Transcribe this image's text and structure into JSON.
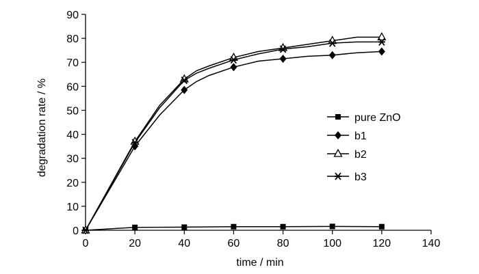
{
  "chart_data": {
    "type": "line",
    "xlabel": "time / min",
    "ylabel": "degradation rate / %",
    "xlim": [
      0,
      140
    ],
    "ylim": [
      0,
      90
    ],
    "xticks": [
      0,
      20,
      40,
      60,
      80,
      100,
      120,
      140
    ],
    "yticks": [
      0,
      10,
      20,
      30,
      40,
      50,
      60,
      70,
      80,
      90
    ],
    "grid": false,
    "legend_position": "right",
    "series": [
      {
        "name": "pure ZnO",
        "marker": "square",
        "x": [
          0,
          20,
          40,
          60,
          80,
          100,
          120
        ],
        "values": [
          0,
          1.2,
          1.3,
          1.5,
          1.5,
          1.6,
          1.5
        ]
      },
      {
        "name": "b1",
        "marker": "diamond",
        "x": [
          0,
          20,
          30,
          40,
          45,
          50,
          60,
          70,
          80,
          90,
          100,
          110,
          120
        ],
        "values": [
          0,
          35,
          48,
          58.5,
          62,
          64.5,
          68,
          70.5,
          71.5,
          72.5,
          73,
          74,
          74.5
        ]
      },
      {
        "name": "b2",
        "marker": "triangle-open",
        "x": [
          0,
          20,
          30,
          40,
          45,
          50,
          60,
          70,
          80,
          90,
          100,
          110,
          120
        ],
        "values": [
          0,
          37,
          52,
          63,
          66.5,
          68.5,
          72,
          74.5,
          76,
          77.5,
          79,
          80.5,
          80.5
        ]
      },
      {
        "name": "b3",
        "marker": "star",
        "x": [
          0,
          20,
          30,
          40,
          45,
          50,
          60,
          70,
          80,
          90,
          100,
          110,
          120
        ],
        "values": [
          0,
          36.5,
          51,
          62.5,
          65.5,
          67.5,
          71,
          73.5,
          75.5,
          76.5,
          78,
          78.5,
          78.5
        ]
      }
    ]
  }
}
